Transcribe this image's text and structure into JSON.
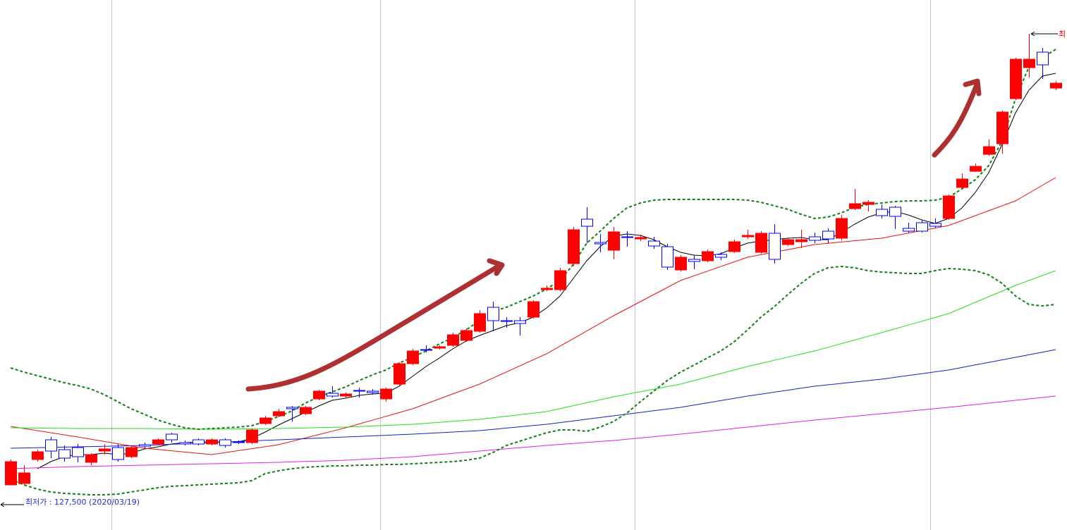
{
  "chart_data": {
    "type": "candlestick",
    "ylim": [
      111500,
      299500
    ],
    "up_color": "#ff0000",
    "down_color": "#0000ff",
    "open": [
      127500,
      128000,
      136500,
      143500,
      140000,
      140750,
      135500,
      139500,
      140750,
      137500,
      141750,
      142000,
      145500,
      142500,
      143500,
      142000,
      143500,
      142750,
      142500,
      149250,
      152000,
      155000,
      152750,
      158000,
      160000,
      159000,
      161000,
      160750,
      158000,
      163250,
      170500,
      175500,
      176000,
      177000,
      178750,
      182000,
      190500,
      185750,
      185750,
      187000,
      196750,
      196750,
      206000,
      221750,
      213500,
      210750,
      215500,
      214750,
      214000,
      212000,
      203750,
      207500,
      207000,
      209250,
      210250,
      215500,
      210000,
      216750,
      212750,
      213750,
      215500,
      217500,
      215000,
      225500,
      227000,
      225250,
      226000,
      218500,
      220500,
      220250,
      222000,
      233000,
      238750,
      244750,
      248500,
      264500,
      275500,
      281000,
      268250
    ],
    "high": [
      136500,
      134500,
      140000,
      144500,
      141500,
      142000,
      138750,
      142000,
      142000,
      141500,
      142500,
      144000,
      146000,
      143250,
      144000,
      144000,
      144000,
      143250,
      147500,
      152000,
      154500,
      155500,
      155500,
      161250,
      162500,
      160250,
      162000,
      161500,
      162000,
      171000,
      175750,
      177000,
      177000,
      181500,
      183000,
      189500,
      192500,
      187000,
      187000,
      193000,
      198250,
      204500,
      219000,
      226000,
      216500,
      219000,
      217500,
      216250,
      215500,
      213000,
      209000,
      209000,
      211000,
      210000,
      214500,
      218000,
      217500,
      220000,
      215000,
      218000,
      217000,
      218500,
      223250,
      232500,
      228500,
      227000,
      226500,
      220500,
      221250,
      222000,
      230500,
      238000,
      241500,
      250000,
      260250,
      279000,
      287500,
      282500,
      270750
    ],
    "low": [
      127500,
      127500,
      135750,
      137000,
      135750,
      135500,
      134500,
      138250,
      135750,
      137000,
      140500,
      141500,
      142500,
      141500,
      141500,
      141500,
      140750,
      142000,
      142000,
      148750,
      151500,
      150000,
      152250,
      157500,
      158500,
      158500,
      158500,
      159500,
      157000,
      162750,
      170000,
      174500,
      175500,
      176500,
      178250,
      181500,
      182000,
      183250,
      180500,
      186500,
      196250,
      196250,
      205000,
      213250,
      210000,
      207500,
      212000,
      214000,
      211250,
      203750,
      203250,
      204000,
      206500,
      207250,
      209750,
      214750,
      209500,
      206000,
      212250,
      211500,
      213250,
      213250,
      214250,
      225000,
      224500,
      222000,
      218250,
      217000,
      217000,
      218750,
      221500,
      232500,
      238500,
      244250,
      245000,
      264000,
      272000,
      271500,
      267500
    ],
    "close": [
      135750,
      131750,
      139250,
      139500,
      137000,
      137500,
      138250,
      140250,
      136500,
      140750,
      141250,
      143500,
      143500,
      142000,
      142000,
      143500,
      141500,
      142500,
      147000,
      151250,
      153500,
      154500,
      155000,
      160750,
      159000,
      159750,
      160750,
      160250,
      161500,
      170500,
      175000,
      175250,
      176500,
      180750,
      182250,
      188250,
      185750,
      185500,
      184750,
      192500,
      197250,
      203500,
      218000,
      219250,
      213000,
      217250,
      215250,
      215250,
      212250,
      204750,
      208250,
      206750,
      210250,
      208250,
      213750,
      216000,
      216750,
      207500,
      214500,
      214500,
      214250,
      214750,
      222000,
      227250,
      227750,
      223000,
      222750,
      217500,
      217500,
      219250,
      230000,
      236000,
      240500,
      247500,
      259750,
      278500,
      278500,
      276500,
      270000
    ],
    "lines": [
      {
        "color": "#000000",
        "values": [
          null,
          null,
          133250,
          135750,
          137500,
          138250,
          138250,
          138750,
          138250,
          138750,
          140250,
          141000,
          142000,
          142500,
          142750,
          142750,
          142750,
          142750,
          144000,
          146250,
          148750,
          151000,
          153250,
          155500,
          157500,
          158250,
          159250,
          159750,
          160000,
          162500,
          166000,
          169500,
          172500,
          175750,
          178500,
          180500,
          182250,
          184000,
          185000,
          187000,
          190250,
          194500,
          200750,
          207000,
          212000,
          215750,
          216500,
          216000,
          214500,
          212000,
          210000,
          209000,
          208750,
          209500,
          211500,
          213250,
          214000,
          214500,
          215000,
          215250,
          214500,
          214500,
          217000,
          220000,
          222500,
          224000,
          224500,
          223250,
          221500,
          220250,
          222000,
          225750,
          231250,
          238250,
          248250,
          259500,
          267500,
          272500,
          273500
        ]
      },
      {
        "color": "#e81010",
        "values": [
          148250,
          147500,
          146750,
          146000,
          145250,
          144500,
          143700,
          142900,
          142100,
          141300,
          140500,
          140050,
          139600,
          139150,
          138700,
          138250,
          138950,
          139650,
          140350,
          141050,
          141750,
          142950,
          144150,
          145350,
          146550,
          147750,
          149100,
          150450,
          151800,
          153150,
          154500,
          156250,
          158000,
          159750,
          161500,
          163250,
          165400,
          167550,
          169700,
          171850,
          174000,
          176700,
          179400,
          182100,
          184800,
          187500,
          190000,
          192500,
          195000,
          197500,
          200000,
          201650,
          203300,
          204950,
          206600,
          208250,
          209150,
          210050,
          210950,
          211850,
          212750,
          213200,
          213650,
          214100,
          214550,
          215000,
          215900,
          216800,
          217700,
          218600,
          219500,
          221250,
          223000,
          224750,
          226500,
          228250,
          231000,
          233750,
          236500
        ]
      },
      {
        "color": "#20e020",
        "values": [
          147750,
          147700,
          147650,
          147600,
          147550,
          147500,
          147500,
          147500,
          147500,
          147500,
          147500,
          147450,
          147400,
          147350,
          147300,
          147250,
          147300,
          147350,
          147400,
          147450,
          147500,
          147600,
          147700,
          147800,
          147900,
          148000,
          148200,
          148400,
          148600,
          148800,
          149000,
          149350,
          149700,
          150050,
          150400,
          150750,
          151300,
          151850,
          152400,
          152950,
          153500,
          154550,
          155600,
          156650,
          157700,
          158750,
          159650,
          160550,
          161450,
          162350,
          163250,
          164500,
          165750,
          167000,
          168250,
          169500,
          170600,
          171700,
          172800,
          173900,
          175000,
          176300,
          177600,
          178900,
          180200,
          181500,
          182850,
          184200,
          185550,
          186900,
          188250,
          190250,
          192250,
          194250,
          196250,
          198250,
          200000,
          201750,
          203500
        ]
      },
      {
        "color": "#1020c8",
        "values": [
          140500,
          140600,
          140700,
          140800,
          140900,
          141000,
          141100,
          141200,
          141300,
          141400,
          141500,
          141700,
          141900,
          142100,
          142300,
          142500,
          142700,
          142900,
          143100,
          143300,
          143500,
          143700,
          143900,
          144100,
          144300,
          144500,
          144700,
          144900,
          145100,
          145300,
          145500,
          145750,
          146000,
          146250,
          146500,
          146750,
          147200,
          147650,
          148100,
          148550,
          149000,
          149600,
          150200,
          150800,
          151400,
          152000,
          152600,
          153200,
          153800,
          154400,
          155000,
          155800,
          156600,
          157400,
          158200,
          159000,
          159700,
          160400,
          161100,
          161800,
          162500,
          163000,
          163500,
          164000,
          164500,
          165000,
          165650,
          166300,
          166950,
          167600,
          168250,
          169150,
          170050,
          170950,
          171850,
          172750,
          173650,
          174550,
          175500
        ]
      },
      {
        "color": "#e020e0",
        "values": [
          133250,
          133400,
          133550,
          133700,
          133850,
          134000,
          134100,
          134200,
          134300,
          134400,
          134500,
          134600,
          134700,
          134800,
          134900,
          135000,
          135100,
          135200,
          135300,
          135400,
          135500,
          135650,
          135800,
          135950,
          136100,
          136250,
          136500,
          136750,
          137000,
          137250,
          137500,
          137900,
          138300,
          138700,
          139100,
          139500,
          139900,
          140300,
          140700,
          141100,
          141500,
          141850,
          142200,
          142550,
          142900,
          143250,
          143700,
          144150,
          144600,
          145050,
          145500,
          146000,
          146500,
          147000,
          147500,
          148000,
          148500,
          149000,
          149500,
          150000,
          150500,
          150950,
          151400,
          151850,
          152300,
          152750,
          153200,
          153650,
          154100,
          154550,
          155000,
          155500,
          156000,
          156500,
          157000,
          157500,
          158000,
          158500,
          159000
        ]
      },
      {
        "color": "#108010",
        "dashed": true,
        "values": [
          169000,
          167500,
          166250,
          165000,
          163750,
          162750,
          161500,
          159500,
          157000,
          154500,
          152500,
          150500,
          149000,
          147750,
          147250,
          147500,
          147750,
          148000,
          148500,
          150000,
          151750,
          153750,
          156500,
          158750,
          160500,
          162250,
          164500,
          166500,
          168250,
          170750,
          172750,
          175000,
          177500,
          179750,
          182500,
          185750,
          189000,
          190500,
          192500,
          194500,
          197000,
          200000,
          205750,
          213250,
          217500,
          222000,
          225750,
          227500,
          228500,
          228750,
          228750,
          228750,
          228750,
          228750,
          228750,
          228500,
          227750,
          226500,
          225250,
          223500,
          222000,
          222500,
          224000,
          226000,
          227000,
          227500,
          228000,
          228250,
          228250,
          228500,
          229500,
          232500,
          235750,
          240750,
          249500,
          264500,
          275750,
          279000,
          282000
        ]
      },
      {
        "color": "#108010",
        "dashed": true,
        "values": [
          129500,
          127500,
          126000,
          125000,
          124500,
          124250,
          124000,
          124000,
          124250,
          125000,
          125750,
          126500,
          127000,
          127250,
          127500,
          127750,
          128000,
          128250,
          129000,
          131500,
          132500,
          133250,
          133750,
          134000,
          134250,
          134250,
          134500,
          134500,
          134750,
          134750,
          135000,
          135250,
          135500,
          135750,
          136250,
          137000,
          139000,
          141500,
          143000,
          144500,
          146000,
          147000,
          147000,
          146500,
          148000,
          150000,
          153000,
          157000,
          160750,
          164500,
          167500,
          170000,
          172500,
          175000,
          178250,
          182500,
          187000,
          190750,
          195000,
          199000,
          202500,
          204500,
          205000,
          204500,
          203500,
          203000,
          202750,
          202500,
          202500,
          203500,
          204250,
          204000,
          203500,
          202000,
          199000,
          194500,
          191500,
          191000,
          191500
        ]
      }
    ],
    "low_label": "최저가 : 127,500 (2020/03/19)",
    "low_label_color": "#2030d0",
    "high_label": "최",
    "high_label_color": "#e00000"
  }
}
